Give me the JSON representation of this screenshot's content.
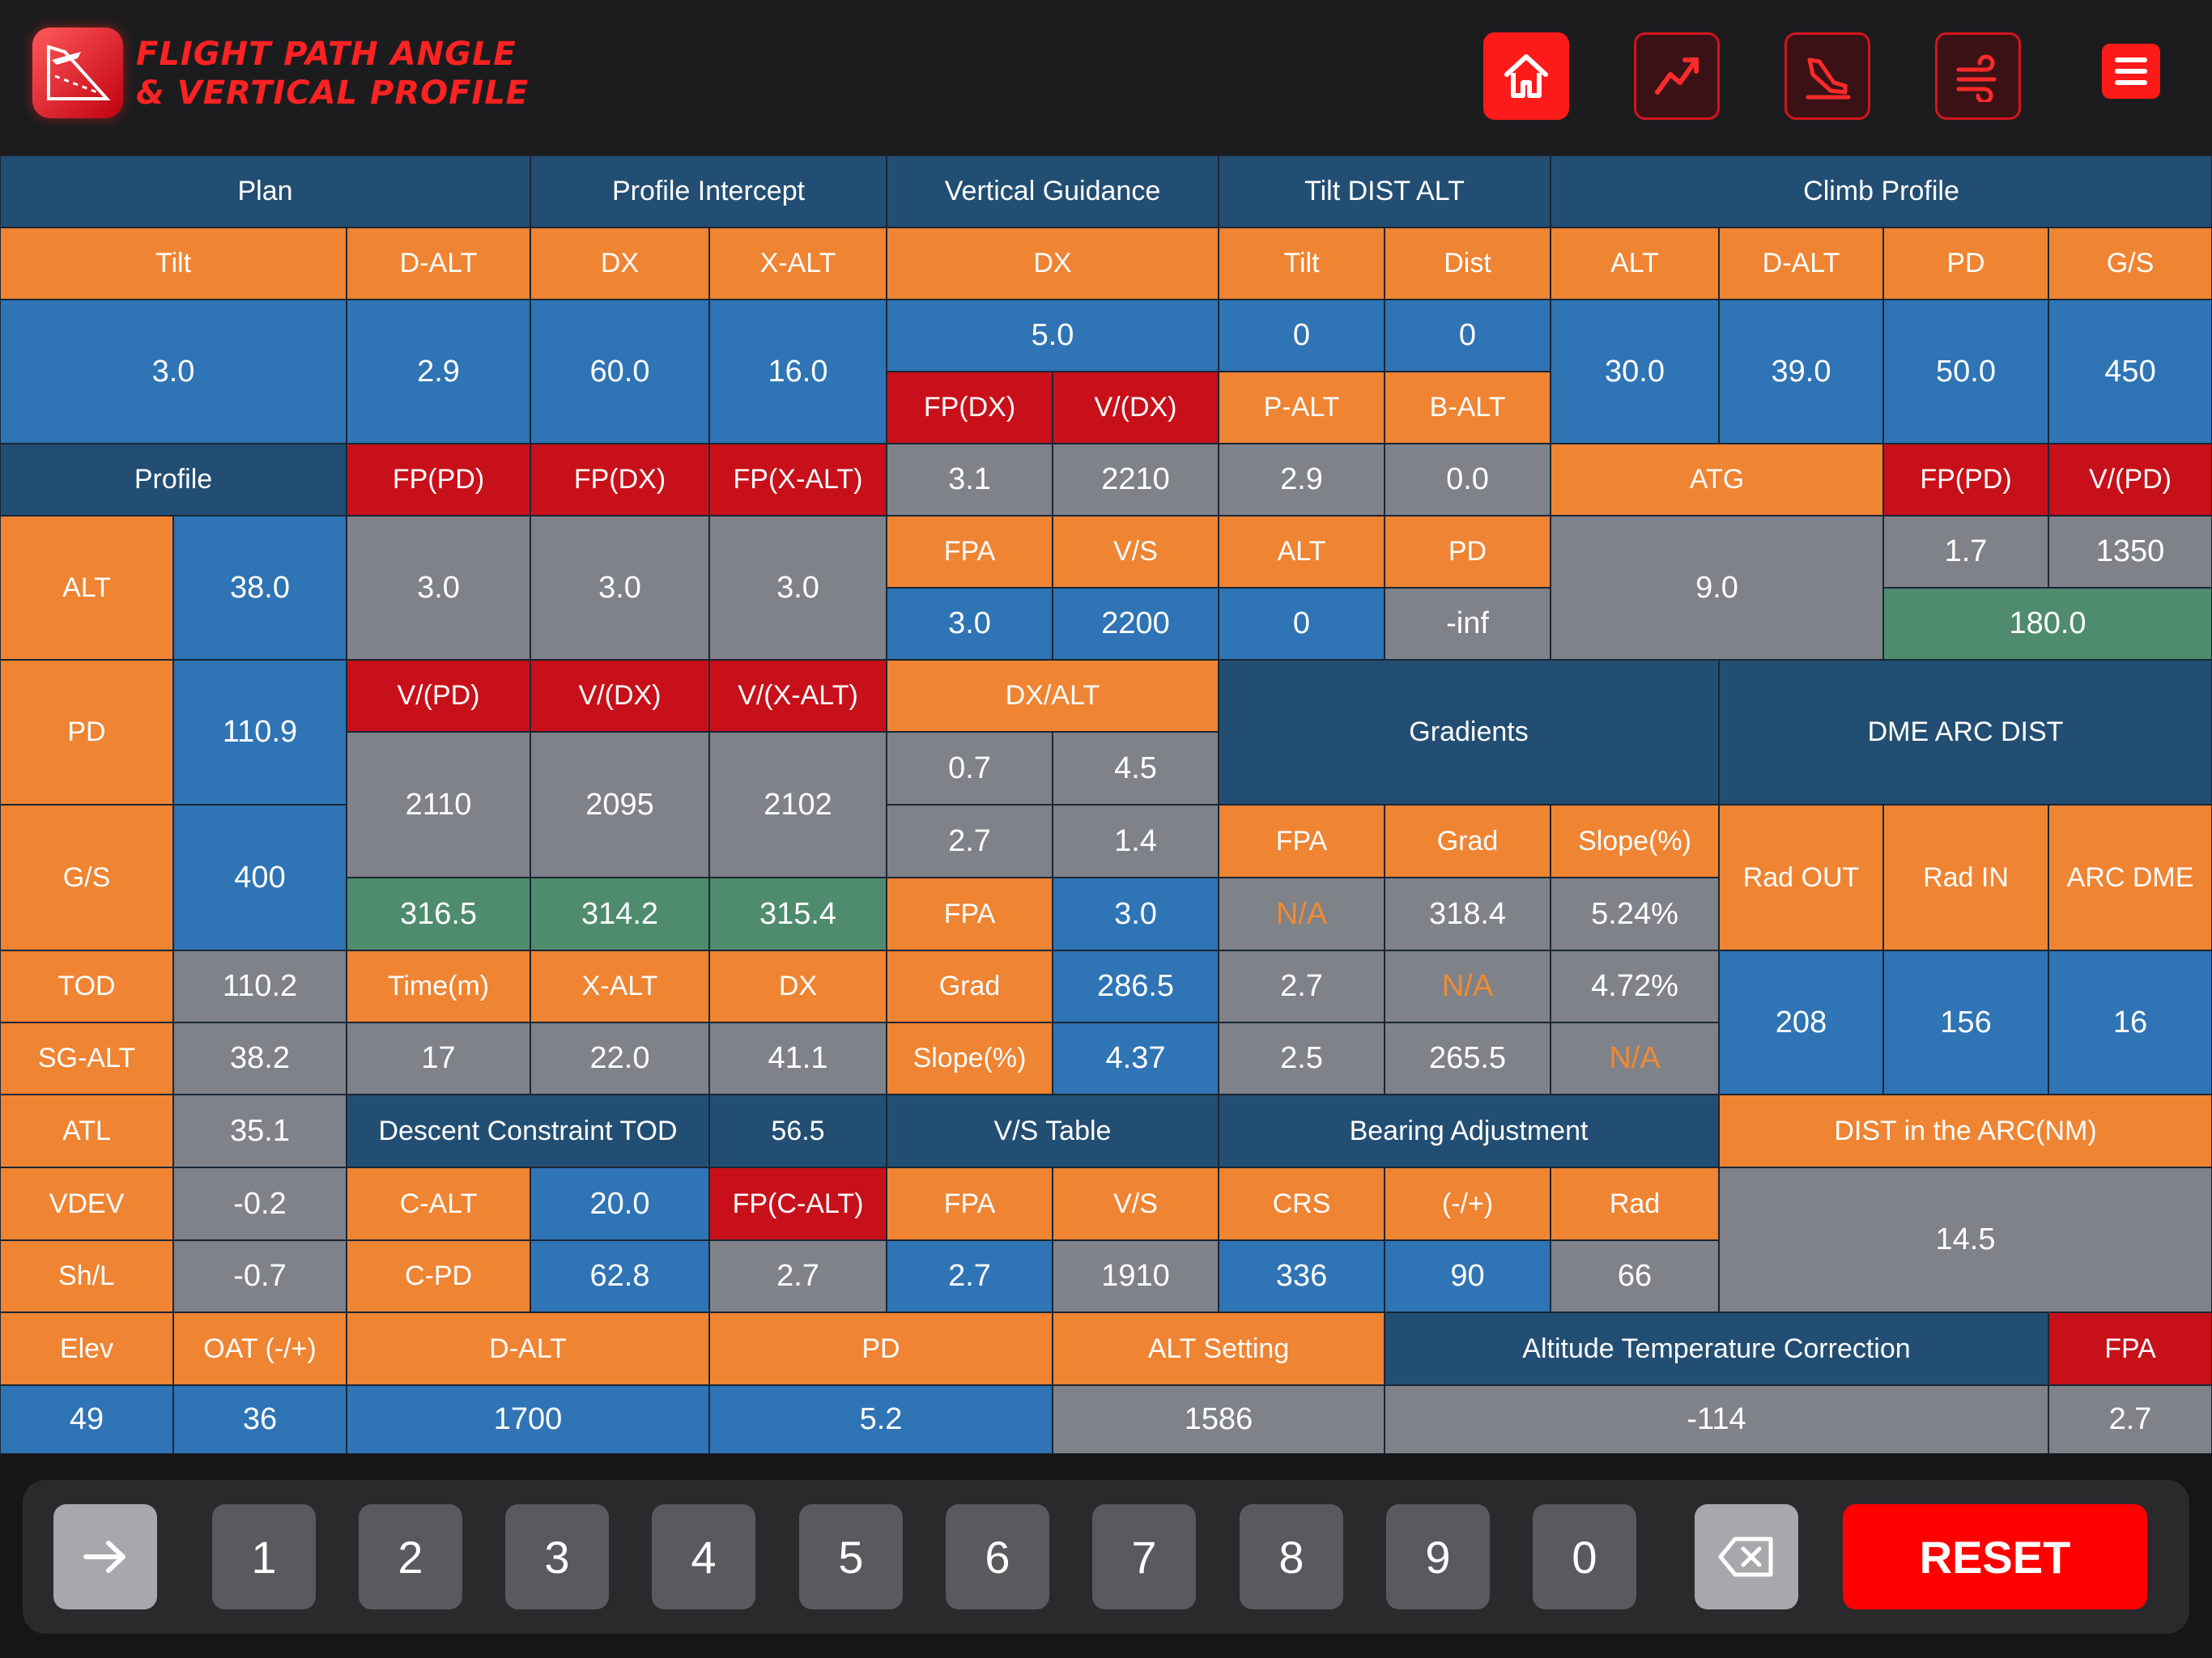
{
  "header": {
    "title_line1": "FLIGHT PATH ANGLE",
    "title_line2": "& VERTICAL PROFILE",
    "nav_buttons": [
      "home-icon",
      "chart-line-icon",
      "landing-plane-icon",
      "wind-icon"
    ],
    "menu_icon": "menu-icon"
  },
  "colors": {
    "orange": "#ef8433",
    "blue": "#2f74b5",
    "navy": "#234e73",
    "gray": "#7f8289",
    "red": "#c8101a",
    "green": "#4f8c6e",
    "accent": "#ff1a1a"
  },
  "cells": [
    "Plan",
    "Profile Intercept",
    "Vertical Guidance",
    "Tilt DIST ALT",
    "Climb Profile",
    "Tilt",
    "D-ALT",
    "DX",
    "X-ALT",
    "DX",
    "Tilt",
    "Dist",
    "ALT",
    "D-ALT",
    "PD",
    "G/S",
    "3.0",
    "2.9",
    "60.0",
    "16.0",
    "5.0",
    "0",
    "0",
    "30.0",
    "39.0",
    "50.0",
    "450",
    "FP(DX)",
    "V/(DX)",
    "P-ALT",
    "B-ALT",
    "Profile",
    "FP(PD)",
    "FP(DX)",
    "FP(X-ALT)",
    "3.1",
    "2210",
    "2.9",
    "0.0",
    "ATG",
    "FP(PD)",
    "V/(PD)",
    "ALT",
    "38.0",
    "3.0",
    "3.0",
    "3.0",
    "FPA",
    "V/S",
    "ALT",
    "PD",
    "9.0",
    "1.7",
    "1350",
    "3.0",
    "2200",
    "0",
    "-inf",
    "180.0",
    "PD",
    "110.9",
    "V/(PD)",
    "V/(DX)",
    "V/(X-ALT)",
    "DX/ALT",
    "Gradients",
    "DME ARC DIST",
    "2110",
    "2095",
    "2102",
    "0.7",
    "4.5",
    "G/S",
    "400",
    "2.7",
    "1.4",
    "FPA",
    "Grad",
    "Slope(%)",
    "Rad OUT",
    "Rad IN",
    "ARC DME",
    "316.5",
    "314.2",
    "315.4",
    "FPA",
    "3.0",
    "N/A",
    "318.4",
    "5.24%",
    "TOD",
    "110.2",
    "Time(m)",
    "X-ALT",
    "DX",
    "Grad",
    "286.5",
    "2.7",
    "N/A",
    "4.72%",
    "208",
    "156",
    "16",
    "SG-ALT",
    "38.2",
    "17",
    "22.0",
    "41.1",
    "Slope(%)",
    "4.37",
    "2.5",
    "265.5",
    "N/A",
    "ATL",
    "35.1",
    "Descent Constraint TOD",
    "56.5",
    "V/S Table",
    "Bearing Adjustment",
    "DIST in the ARC(NM)",
    "VDEV",
    "-0.2",
    "C-ALT",
    "20.0",
    "FP(C-ALT)",
    "FPA",
    "V/S",
    "CRS",
    "(-/+)",
    "Rad",
    "14.5",
    "Sh/L",
    "-0.7",
    "C-PD",
    "62.8",
    "2.7",
    "2.7",
    "1910",
    "336",
    "90",
    "66",
    "Elev",
    "OAT (-/+)",
    "D-ALT",
    "PD",
    "ALT Setting",
    "Altitude Temperature Correction",
    "FPA",
    "49",
    "36",
    "1700",
    "5.2",
    "1586",
    "-114",
    "2.7"
  ],
  "keypad": {
    "enter_icon": "arrow-right-icon",
    "digits": [
      "1",
      "2",
      "3",
      "4",
      "5",
      "6",
      "7",
      "8",
      "9",
      "0"
    ],
    "backspace_icon": "backspace-icon",
    "reset_label": "RESET"
  }
}
